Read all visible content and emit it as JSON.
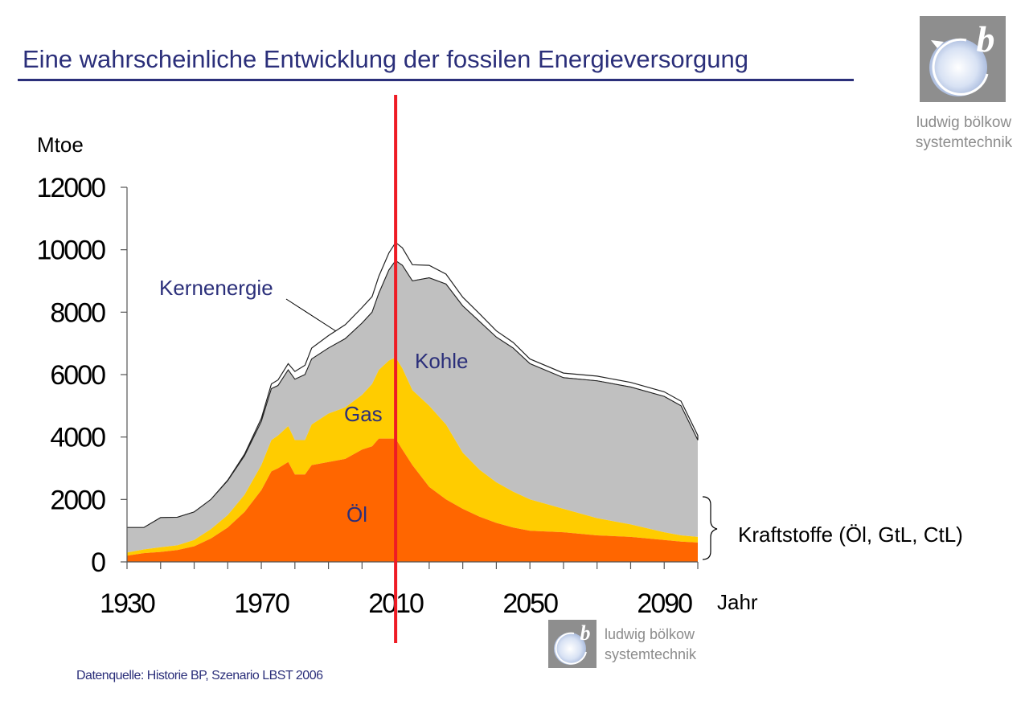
{
  "page": {
    "title": "Eine wahrscheinliche Entwicklung der fossilen Energieversorgung",
    "source": "Datenquelle: Historie BP, Szenario LBST 2006"
  },
  "logo": {
    "letter": "b",
    "name_line1": "ludwig bölkow",
    "name_line2": "systemtechnik",
    "icon": "ludwig-boelkow-logo"
  },
  "colors": {
    "title": "#2b2f7a",
    "oel": "#ff6600",
    "gas": "#ffcc00",
    "kohle": "#c0c0c0",
    "kernenergie": "#ffffff",
    "marker": "#ee1c25",
    "axis": "#555555"
  },
  "chart_data": {
    "type": "area",
    "stacked": true,
    "ylabel": "Mtoe",
    "xlabel": "Jahr",
    "ylim": [
      0,
      12000
    ],
    "xlim": [
      1930,
      2100
    ],
    "y_ticks": [
      0,
      2000,
      4000,
      6000,
      8000,
      10000,
      12000
    ],
    "x_ticks": [
      1930,
      1970,
      2010,
      2050,
      2090
    ],
    "x_minor_step": 10,
    "marker_year": 2010,
    "x": [
      1930,
      1935,
      1940,
      1945,
      1950,
      1955,
      1960,
      1965,
      1970,
      1973,
      1975,
      1978,
      1980,
      1983,
      1985,
      1990,
      1995,
      2000,
      2003,
      2005,
      2008,
      2010,
      2012,
      2015,
      2020,
      2025,
      2030,
      2035,
      2040,
      2045,
      2050,
      2060,
      2070,
      2080,
      2090,
      2095,
      2100
    ],
    "series": [
      {
        "name": "Öl",
        "values": [
          200,
          280,
          320,
          380,
          500,
          750,
          1100,
          1600,
          2300,
          2900,
          3000,
          3200,
          2800,
          2800,
          3100,
          3200,
          3300,
          3600,
          3700,
          3950,
          3950,
          3950,
          3600,
          3100,
          2400,
          2000,
          1700,
          1450,
          1250,
          1100,
          1000,
          950,
          850,
          800,
          700,
          650,
          620
        ]
      },
      {
        "name": "Gas",
        "values": [
          100,
          120,
          150,
          150,
          200,
          300,
          400,
          550,
          800,
          1000,
          1050,
          1150,
          1100,
          1100,
          1300,
          1550,
          1650,
          1750,
          2000,
          2200,
          2500,
          2600,
          2600,
          2400,
          2600,
          2400,
          1800,
          1500,
          1300,
          1150,
          1000,
          750,
          550,
          400,
          250,
          200,
          180
        ]
      },
      {
        "name": "Kohle",
        "values": [
          800,
          700,
          950,
          900,
          900,
          950,
          1100,
          1250,
          1400,
          1650,
          1600,
          1800,
          1950,
          2100,
          2100,
          2100,
          2200,
          2300,
          2300,
          2450,
          2900,
          3100,
          3300,
          3500,
          4100,
          4500,
          4700,
          4750,
          4650,
          4600,
          4350,
          4200,
          4400,
          4400,
          4350,
          4150,
          3100
        ]
      },
      {
        "name": "Kernenergie",
        "values": [
          0,
          0,
          0,
          0,
          0,
          0,
          20,
          50,
          100,
          150,
          180,
          200,
          250,
          300,
          350,
          400,
          450,
          500,
          500,
          550,
          550,
          580,
          560,
          520,
          400,
          320,
          280,
          250,
          200,
          180,
          150,
          150,
          150,
          150,
          150,
          150,
          150
        ]
      }
    ],
    "labels": {
      "kernenergie": "Kernenergie",
      "kohle": "Kohle",
      "gas": "Gas",
      "oel": "Öl"
    },
    "bracket_annotation": "Kraftstoffe (Öl,   GtL, CtL)"
  }
}
